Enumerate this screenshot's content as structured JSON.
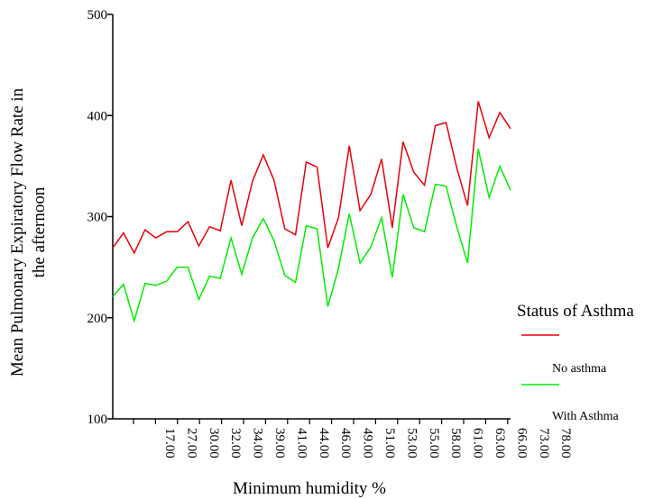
{
  "chart_data": {
    "type": "line",
    "title": "",
    "xlabel": "Minimum humidity %",
    "ylabel": "Mean Pulmonary Expiratory Flow Rate in the afternoon",
    "ylim": [
      100,
      500
    ],
    "y_ticks": [
      "100",
      "200",
      "300",
      "400",
      "500"
    ],
    "x_tick_labels": [
      "17.00",
      "27.00",
      "30.00",
      "32.00",
      "34.00",
      "39.00",
      "41.00",
      "44.00",
      "46.00",
      "49.00",
      "51.00",
      "53.00",
      "55.00",
      "58.00",
      "61.00",
      "63.00",
      "66.00",
      "73.00",
      "78.00"
    ],
    "legend": {
      "title": "Status of Asthma",
      "placement": "right"
    },
    "series": [
      {
        "name": "No asthma",
        "color": "#e8000b",
        "values": [
          269,
          284,
          264,
          287,
          279,
          285,
          285,
          295,
          271,
          290,
          286,
          336,
          291,
          335,
          361,
          336,
          288,
          282,
          354,
          349,
          269,
          299,
          370,
          306,
          322,
          357,
          289,
          374,
          344,
          331,
          390,
          393,
          348,
          311,
          414,
          378,
          403,
          387
        ]
      },
      {
        "name": "With Asthma",
        "color": "#00ee00",
        "values": [
          221,
          233,
          197,
          234,
          232,
          236,
          250,
          250,
          218,
          241,
          239,
          279,
          243,
          279,
          298,
          276,
          242,
          235,
          291,
          288,
          211,
          249,
          303,
          254,
          270,
          299,
          240,
          322,
          289,
          285,
          332,
          330,
          290,
          254,
          367,
          319,
          350,
          326
        ]
      }
    ]
  }
}
